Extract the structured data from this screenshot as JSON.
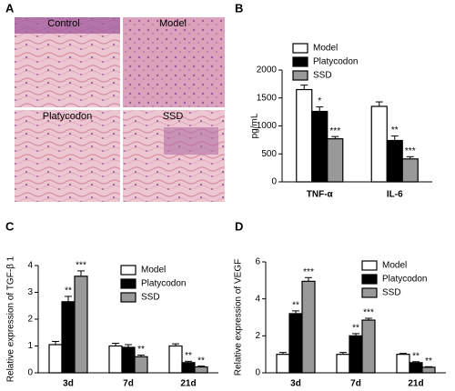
{
  "panel_a": {
    "panel": "A",
    "images": [
      "Control",
      "Model",
      "Platycodon",
      "SSD"
    ]
  },
  "chart_data": [
    {
      "type": "bar",
      "panel": "B",
      "ylabel": "pg/mL",
      "categories": [
        "TNF-α",
        "IL-6"
      ],
      "ylim": [
        0,
        2000
      ],
      "yticks": [
        0,
        500,
        1000,
        1500,
        2000
      ],
      "series": [
        {
          "name": "Model",
          "color": "#ffffff",
          "values": [
            1650,
            1350
          ],
          "errors": [
            80,
            80
          ],
          "stars": [
            null,
            null
          ]
        },
        {
          "name": "Platycodon",
          "color": "#000000",
          "values": [
            1260,
            740
          ],
          "errors": [
            80,
            80
          ],
          "stars": [
            "*",
            "**"
          ]
        },
        {
          "name": "SSD",
          "color": "#999999",
          "values": [
            770,
            410
          ],
          "errors": [
            40,
            40
          ],
          "stars": [
            "***",
            "***"
          ]
        }
      ]
    },
    {
      "type": "bar",
      "panel": "C",
      "ylabel": "Relative expression of TGF-β 1",
      "categories": [
        "3d",
        "7d",
        "21d"
      ],
      "ylim": [
        0,
        4
      ],
      "yticks": [
        0,
        1,
        2,
        3,
        4
      ],
      "series": [
        {
          "name": "Model",
          "color": "#ffffff",
          "values": [
            1.05,
            1.0,
            1.0
          ],
          "errors": [
            0.12,
            0.1,
            0.08
          ],
          "stars": [
            null,
            null,
            null
          ]
        },
        {
          "name": "Platycodon",
          "color": "#000000",
          "values": [
            2.65,
            0.95,
            0.38
          ],
          "errors": [
            0.2,
            0.1,
            0.05
          ],
          "stars": [
            "**",
            null,
            "**"
          ]
        },
        {
          "name": "SSD",
          "color": "#999999",
          "values": [
            3.6,
            0.6,
            0.22
          ],
          "errors": [
            0.2,
            0.06,
            0.03
          ],
          "stars": [
            "***",
            "**",
            "**"
          ]
        }
      ]
    },
    {
      "type": "bar",
      "panel": "D",
      "ylabel": "Relative expression of VEGF",
      "categories": [
        "3d",
        "7d",
        "21d"
      ],
      "ylim": [
        0,
        6
      ],
      "yticks": [
        0,
        2,
        4,
        6
      ],
      "series": [
        {
          "name": "Model",
          "color": "#ffffff",
          "values": [
            1.0,
            1.0,
            1.0
          ],
          "errors": [
            0.1,
            0.1,
            0.05
          ],
          "stars": [
            null,
            null,
            null
          ]
        },
        {
          "name": "Platycodon",
          "color": "#000000",
          "values": [
            3.2,
            2.0,
            0.55
          ],
          "errors": [
            0.15,
            0.12,
            0.05
          ],
          "stars": [
            "**",
            "**",
            "**"
          ]
        },
        {
          "name": "SSD",
          "color": "#999999",
          "values": [
            4.95,
            2.85,
            0.3
          ],
          "errors": [
            0.2,
            0.1,
            0.03
          ],
          "stars": [
            "***",
            "***",
            "**"
          ]
        }
      ]
    }
  ]
}
